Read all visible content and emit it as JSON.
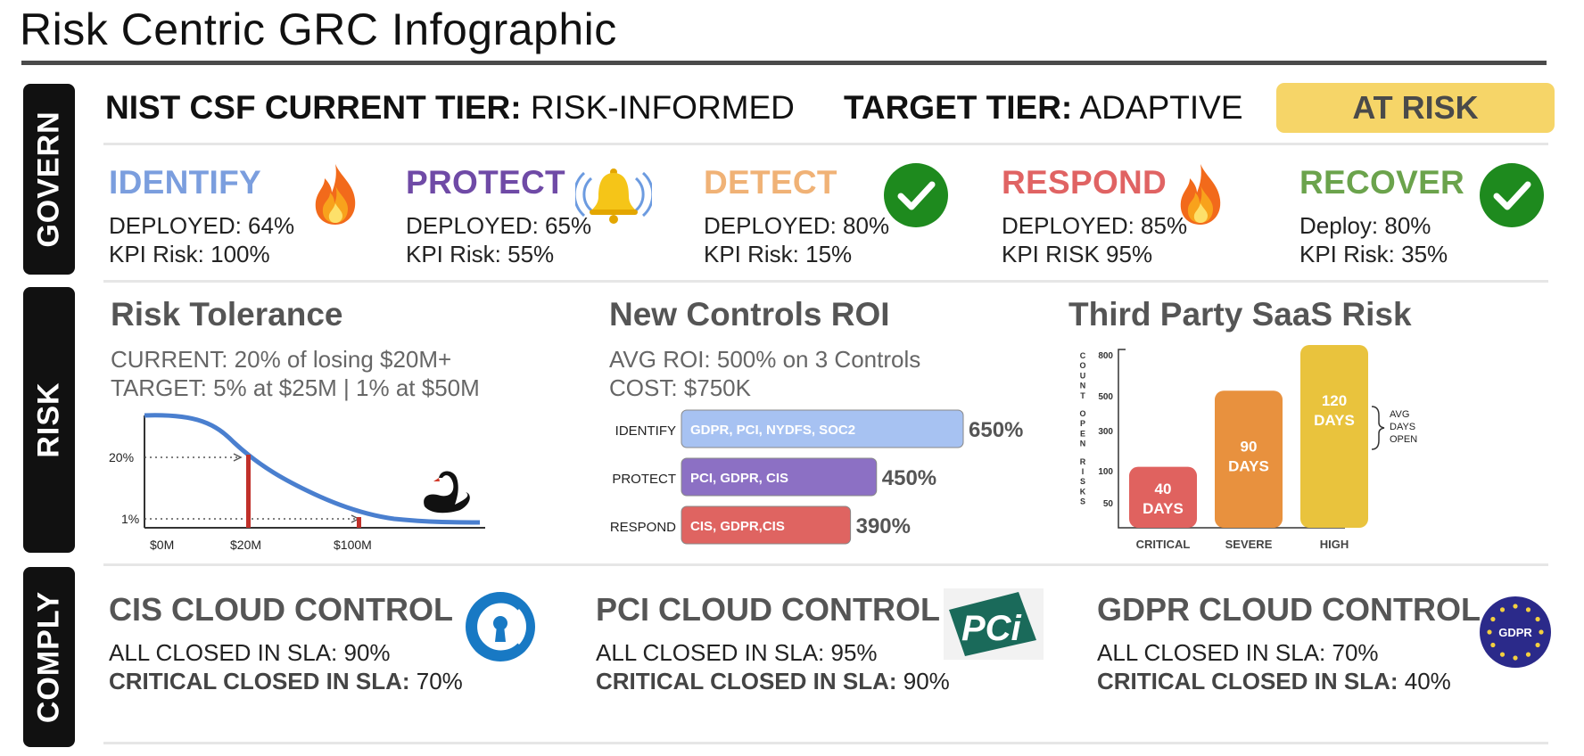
{
  "title": "Risk Centric GRC Infographic",
  "sections": {
    "govern": "GOVERN",
    "risk": "RISK",
    "comply": "COMPLY"
  },
  "tiers": {
    "current_label": "NIST CSF CURRENT TIER:",
    "current_value": "RISK-INFORMED",
    "target_label": "TARGET TIER:",
    "target_value": "ADAPTIVE",
    "status": "AT RISK",
    "status_color": "#f6d568"
  },
  "functions": [
    {
      "name": "IDENTIFY",
      "line1": "DEPLOYED: 64%",
      "line2": "KPI Risk: 100%",
      "color": "#7b9ede",
      "icon": "fire-icon"
    },
    {
      "name": "PROTECT",
      "line1": "DEPLOYED: 65%",
      "line2": "KPI Risk: 55%",
      "color": "#6f4aa6",
      "icon": "alarm-bell-icon"
    },
    {
      "name": "DETECT",
      "line1": "DEPLOYED: 80%",
      "line2": "KPI Risk: 15%",
      "color": "#f0b276",
      "icon": "check-circle-icon"
    },
    {
      "name": "RESPOND",
      "line1": "DEPLOYED: 85%",
      "line2": "KPI RISK 95%",
      "color": "#e06363",
      "icon": "fire-icon"
    },
    {
      "name": "RECOVER",
      "line1": "Deploy: 80%",
      "line2": "KPI Risk: 35%",
      "color": "#6ba34c",
      "icon": "check-circle-icon"
    }
  ],
  "risk_tolerance": {
    "title": "Risk Tolerance",
    "current": "CURRENT: 20% of losing $20M+",
    "target": "TARGET: 5% at $25M  |  1% at $50M",
    "chart_data": {
      "type": "line",
      "title": "",
      "xlabel": "",
      "ylabel": "",
      "x_ticks": [
        "$0M",
        "$20M",
        "$100M"
      ],
      "y_ticks": [
        "20%",
        "1%"
      ],
      "markers": [
        "$20M",
        "$100M"
      ],
      "icon": "black-swan-icon",
      "line_color": "#4a7fcf",
      "marker_color": "#c0302a"
    }
  },
  "roi": {
    "title": "New Controls ROI",
    "avg": "AVG ROI: 500% on 3 Controls",
    "cost": "COST: $750K",
    "chart_data": {
      "type": "bar",
      "categories": [
        "IDENTIFY",
        "PROTECT",
        "RESPOND"
      ],
      "values": [
        650,
        450,
        390
      ],
      "value_labels": [
        "650%",
        "450%",
        "390%"
      ],
      "bar_labels": [
        "GDPR, PCI, NYDFS, SOC2",
        "PCI, GDPR, CIS",
        "CIS, GDPR,CIS"
      ],
      "colors": [
        "#a7c2f2",
        "#8c70c4",
        "#df6461"
      ]
    }
  },
  "third_party": {
    "title": "Third Party SaaS Risk",
    "chart_data": {
      "type": "bar",
      "ylabel": "COUNT OPEN RISKS",
      "y_ticks": [
        "800",
        "500",
        "300",
        "100",
        "50"
      ],
      "categories": [
        "CRITICAL",
        "SEVERE",
        "HIGH"
      ],
      "bar_labels": [
        [
          "40",
          "DAYS"
        ],
        [
          "90",
          "DAYS"
        ],
        [
          "120",
          "DAYS"
        ]
      ],
      "values": [
        40,
        90,
        120
      ],
      "colors": [
        "#e0625f",
        "#e8913e",
        "#e9c33d"
      ],
      "annotation": [
        "AVG",
        "DAYS",
        "OPEN"
      ]
    }
  },
  "comply": [
    {
      "title": "CIS CLOUD CONTROL",
      "line1": "ALL CLOSED IN SLA: 90%",
      "line2_label": "CRITICAL CLOSED IN SLA:",
      "line2_value": "70%",
      "icon": "cis-logo-icon"
    },
    {
      "title": "PCI CLOUD CONTROL",
      "line1": "ALL CLOSED IN SLA: 95%",
      "line2_label": "CRITICAL CLOSED IN SLA:",
      "line2_value": "90%",
      "icon": "pci-logo-icon",
      "logo_text": "PCi"
    },
    {
      "title": "GDPR CLOUD CONTROL",
      "line1": "ALL CLOSED IN SLA: 70%",
      "line2_label": "CRITICAL CLOSED IN SLA:",
      "line2_value": "40%",
      "icon": "gdpr-logo-icon",
      "logo_text": "GDPR"
    }
  ]
}
